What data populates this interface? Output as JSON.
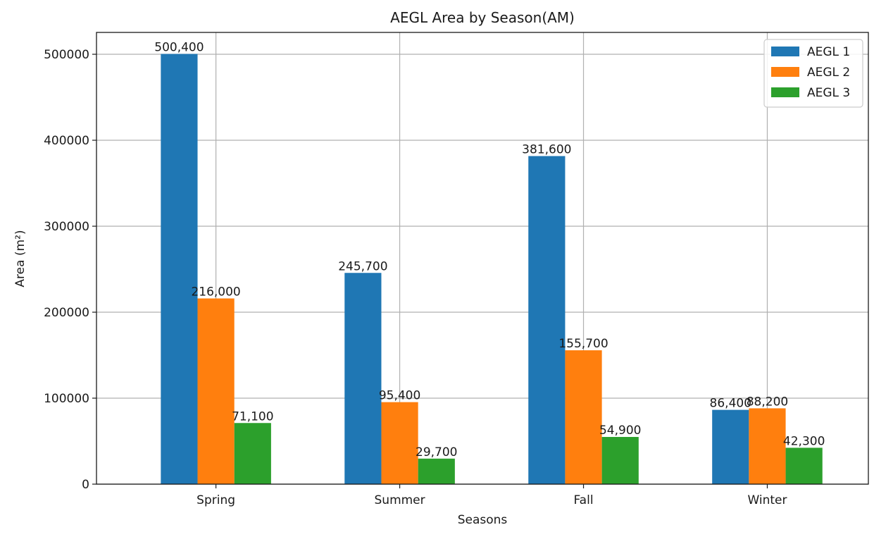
{
  "chart_data": {
    "type": "bar",
    "title": "AEGL Area by Season(AM)",
    "xlabel": "Seasons",
    "ylabel": "Area (m²)",
    "categories": [
      "Spring",
      "Summer",
      "Fall",
      "Winter"
    ],
    "series": [
      {
        "name": "AEGL 1",
        "color": "#1f77b4",
        "values": [
          500400,
          245700,
          381600,
          86400
        ],
        "labels": [
          "500,400",
          "245,700",
          "381,600",
          "86,400"
        ]
      },
      {
        "name": "AEGL 2",
        "color": "#ff7f0e",
        "values": [
          216000,
          95400,
          155700,
          88200
        ],
        "labels": [
          "216,000",
          "95,400",
          "155,700",
          "88,200"
        ]
      },
      {
        "name": "AEGL 3",
        "color": "#2ca02c",
        "values": [
          71100,
          29700,
          54900,
          42300
        ],
        "labels": [
          "71,100",
          "29,700",
          "54,900",
          "42,300"
        ]
      }
    ],
    "ylim": [
      0,
      525420
    ],
    "yticks": [
      0,
      100000,
      200000,
      300000,
      400000,
      500000
    ],
    "ytick_labels": [
      "0",
      "100000",
      "200000",
      "300000",
      "400000",
      "500000"
    ],
    "grid": true,
    "legend_position": "top-right"
  }
}
